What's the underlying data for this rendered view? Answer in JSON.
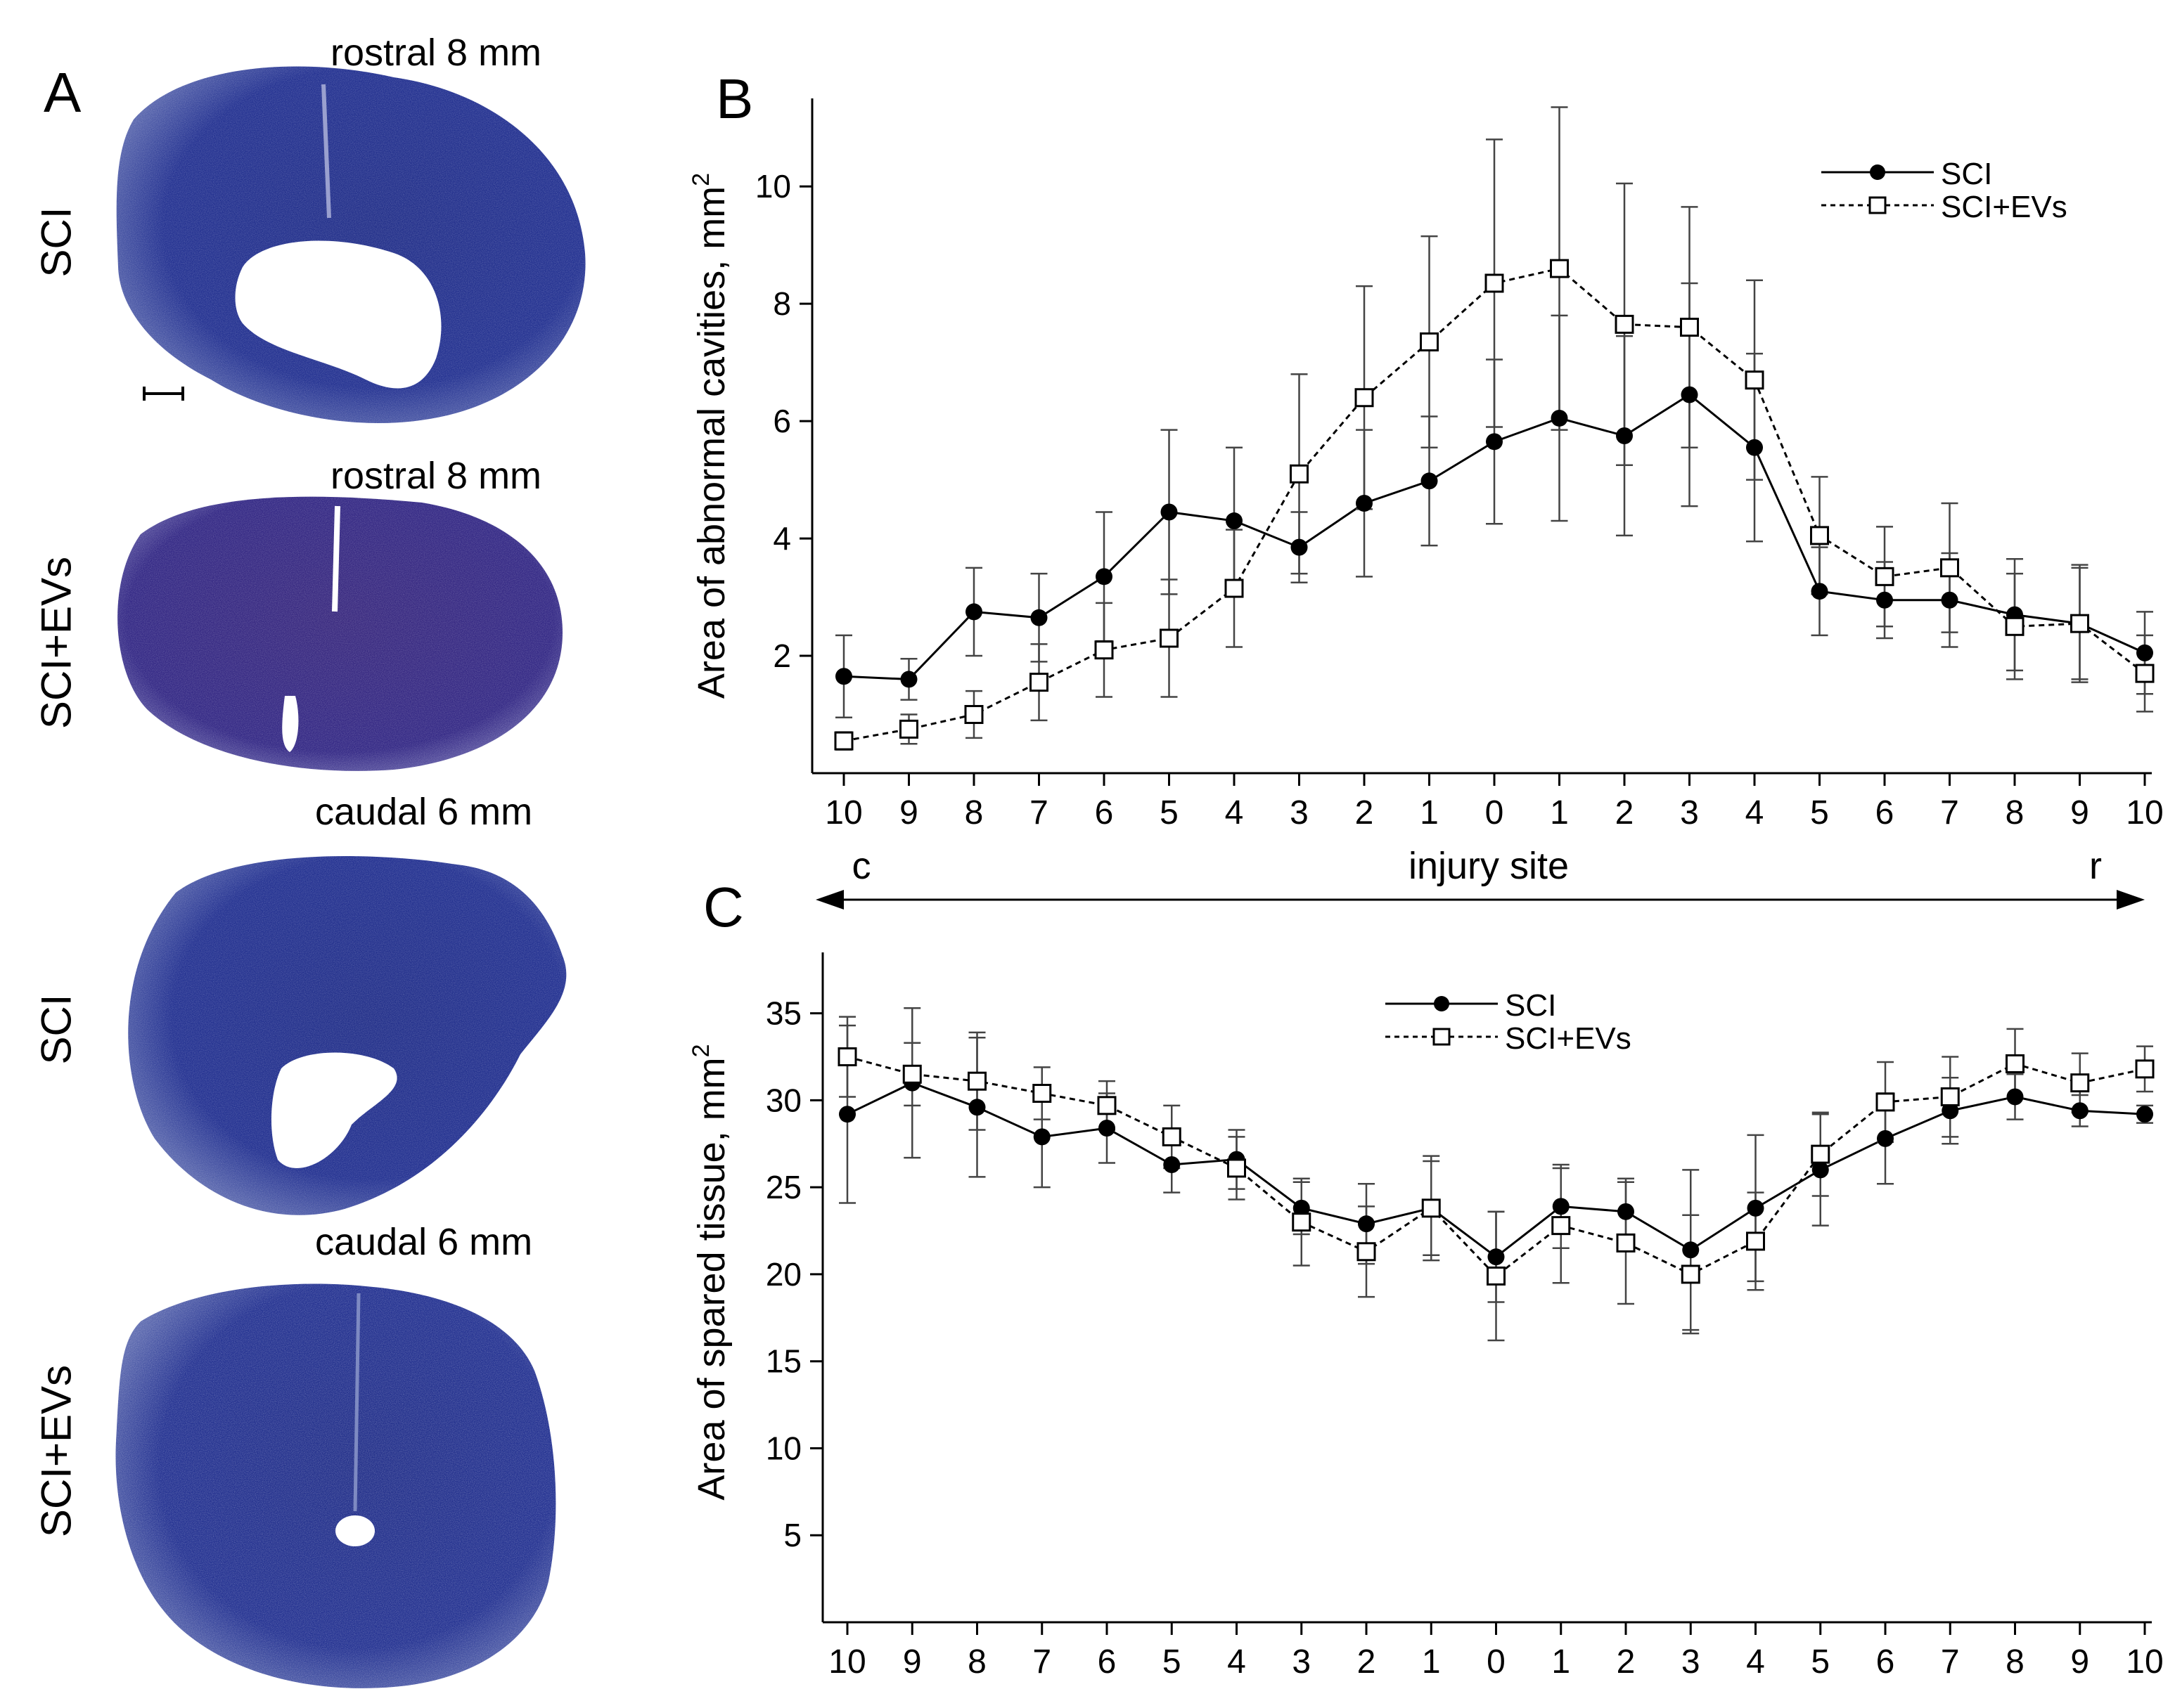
{
  "panel_a": {
    "letter": "A",
    "sections": [
      {
        "caption": "rostral 8 mm",
        "group": "SCI",
        "lesion": "large"
      },
      {
        "caption": "rostral 8 mm",
        "group": "SCI+EVs",
        "lesion": "small"
      },
      {
        "caption": "caudal 6 mm",
        "group": "SCI",
        "lesion": "medium"
      },
      {
        "caption": "caudal 6 mm",
        "group": "SCI+EVs",
        "lesion": "tiny"
      }
    ],
    "colors": {
      "stain": "#1f2f86",
      "stain_light": "#6a74b3",
      "violet": "#3a2a82"
    }
  },
  "injury_axis": {
    "left": "c",
    "center": "injury site",
    "right": "r"
  },
  "chart_data": [
    {
      "panel": "B",
      "type": "line",
      "ylabel": "Area of abnormal cavities, mm",
      "ylabel_sup": "2",
      "categories": [
        "10",
        "9",
        "8",
        "7",
        "6",
        "5",
        "4",
        "3",
        "2",
        "1",
        "0",
        "1",
        "2",
        "3",
        "4",
        "5",
        "6",
        "7",
        "8",
        "9",
        "10"
      ],
      "yticks": [
        "2",
        "4",
        "6",
        "8",
        "10"
      ],
      "ylim": [
        0,
        11.5
      ],
      "legend_position": "top-right",
      "series": [
        {
          "name": "SCI",
          "marker": "filled-circle",
          "style": "solid",
          "values": [
            1.65,
            1.6,
            2.75,
            2.65,
            3.35,
            4.45,
            4.3,
            3.85,
            4.6,
            4.98,
            5.65,
            6.05,
            5.75,
            6.45,
            5.55,
            3.1,
            2.95,
            2.95,
            2.7,
            2.55,
            2.05
          ],
          "errors": [
            0.7,
            0.35,
            0.75,
            0.75,
            1.1,
            1.4,
            1.25,
            0.6,
            1.25,
            1.1,
            1.4,
            1.75,
            1.7,
            1.9,
            1.6,
            0.75,
            0.65,
            0.8,
            0.95,
            1.0,
            0.7
          ]
        },
        {
          "name": "SCI+EVs",
          "marker": "open-square",
          "style": "dashed",
          "values": [
            0.55,
            0.75,
            1.0,
            1.55,
            2.1,
            2.3,
            3.15,
            5.1,
            6.4,
            7.35,
            8.35,
            8.6,
            7.65,
            7.6,
            6.7,
            4.05,
            3.35,
            3.5,
            2.5,
            2.55,
            1.7
          ],
          "errors": [
            0.15,
            0.25,
            0.4,
            0.65,
            0.8,
            1.0,
            1.0,
            1.7,
            1.9,
            1.8,
            2.45,
            2.75,
            2.4,
            2.05,
            1.7,
            1.0,
            0.85,
            1.1,
            0.9,
            0.95,
            0.65
          ]
        }
      ]
    },
    {
      "panel": "C",
      "type": "line",
      "ylabel": "Area of spared tissue, mm",
      "ylabel_sup": "2",
      "categories": [
        "10",
        "9",
        "8",
        "7",
        "6",
        "5",
        "4",
        "3",
        "2",
        "1",
        "0",
        "1",
        "2",
        "3",
        "4",
        "5",
        "6",
        "7",
        "8",
        "9",
        "10"
      ],
      "yticks": [
        "5",
        "10",
        "15",
        "20",
        "25",
        "30",
        "35"
      ],
      "ylim": [
        0,
        38.5
      ],
      "legend_position": "top-center",
      "series": [
        {
          "name": "SCI",
          "marker": "filled-circle",
          "style": "solid",
          "values": [
            29.2,
            31.0,
            29.6,
            27.9,
            28.4,
            26.3,
            26.6,
            23.8,
            22.9,
            23.8,
            21.0,
            23.9,
            23.6,
            21.4,
            23.8,
            26.0,
            27.8,
            29.4,
            30.2,
            29.4,
            29.2
          ],
          "errors": [
            5.1,
            4.3,
            4.0,
            2.9,
            2.0,
            1.6,
            1.7,
            1.5,
            2.3,
            3.0,
            2.6,
            2.4,
            1.9,
            4.6,
            4.2,
            3.2,
            2.6,
            1.9,
            1.3,
            0.9,
            0.5
          ]
        },
        {
          "name": "SCI+EVs",
          "marker": "open-square",
          "style": "dashed",
          "values": [
            32.5,
            31.5,
            31.1,
            30.4,
            29.7,
            27.9,
            26.1,
            23.0,
            21.3,
            23.8,
            19.9,
            22.8,
            21.8,
            20.0,
            21.9,
            26.9,
            29.9,
            30.2,
            32.1,
            31.0,
            31.8
          ],
          "errors": [
            2.3,
            1.8,
            2.8,
            1.5,
            1.4,
            1.8,
            1.8,
            2.5,
            2.6,
            2.7,
            3.7,
            3.3,
            3.5,
            3.4,
            2.8,
            2.4,
            2.3,
            2.3,
            2.0,
            1.7,
            1.3
          ]
        }
      ]
    }
  ]
}
